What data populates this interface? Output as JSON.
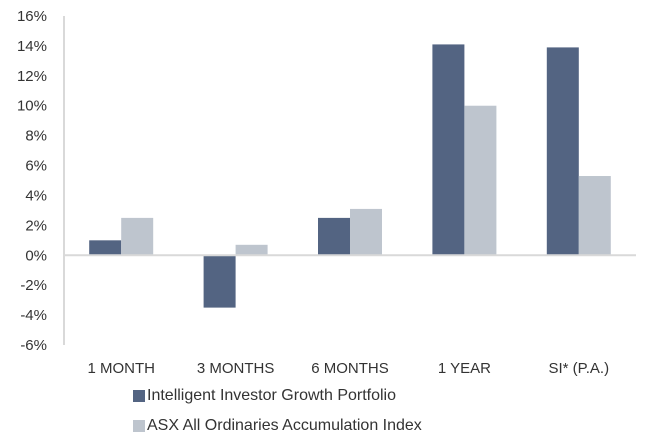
{
  "chart_data": {
    "type": "bar",
    "title": "",
    "xlabel": "",
    "ylabel": "",
    "categories": [
      "1 MONTH",
      "3 MONTHS",
      "6 MONTHS",
      "1 YEAR",
      "SI* (P.A.)"
    ],
    "series": [
      {
        "name": "Intelligent Investor Growth Portfolio",
        "color": "#536482",
        "values": [
          1.0,
          -3.5,
          2.5,
          14.1,
          13.9
        ]
      },
      {
        "name": "ASX All Ordinaries Accumulation Index",
        "color": "#bec5ce",
        "values": [
          2.5,
          0.7,
          3.1,
          10.0,
          5.3
        ]
      }
    ],
    "ylim": [
      -6,
      16
    ],
    "yticks": [
      16,
      14,
      12,
      10,
      8,
      6,
      4,
      2,
      0,
      -2,
      -4,
      -6
    ],
    "ytick_labels": [
      "16%",
      "14%",
      "12%",
      "10%",
      "8%",
      "6%",
      "4%",
      "2%",
      "0%",
      "-2%",
      "-4%",
      "-6%"
    ],
    "grid": false,
    "legend_position": "bottom"
  }
}
